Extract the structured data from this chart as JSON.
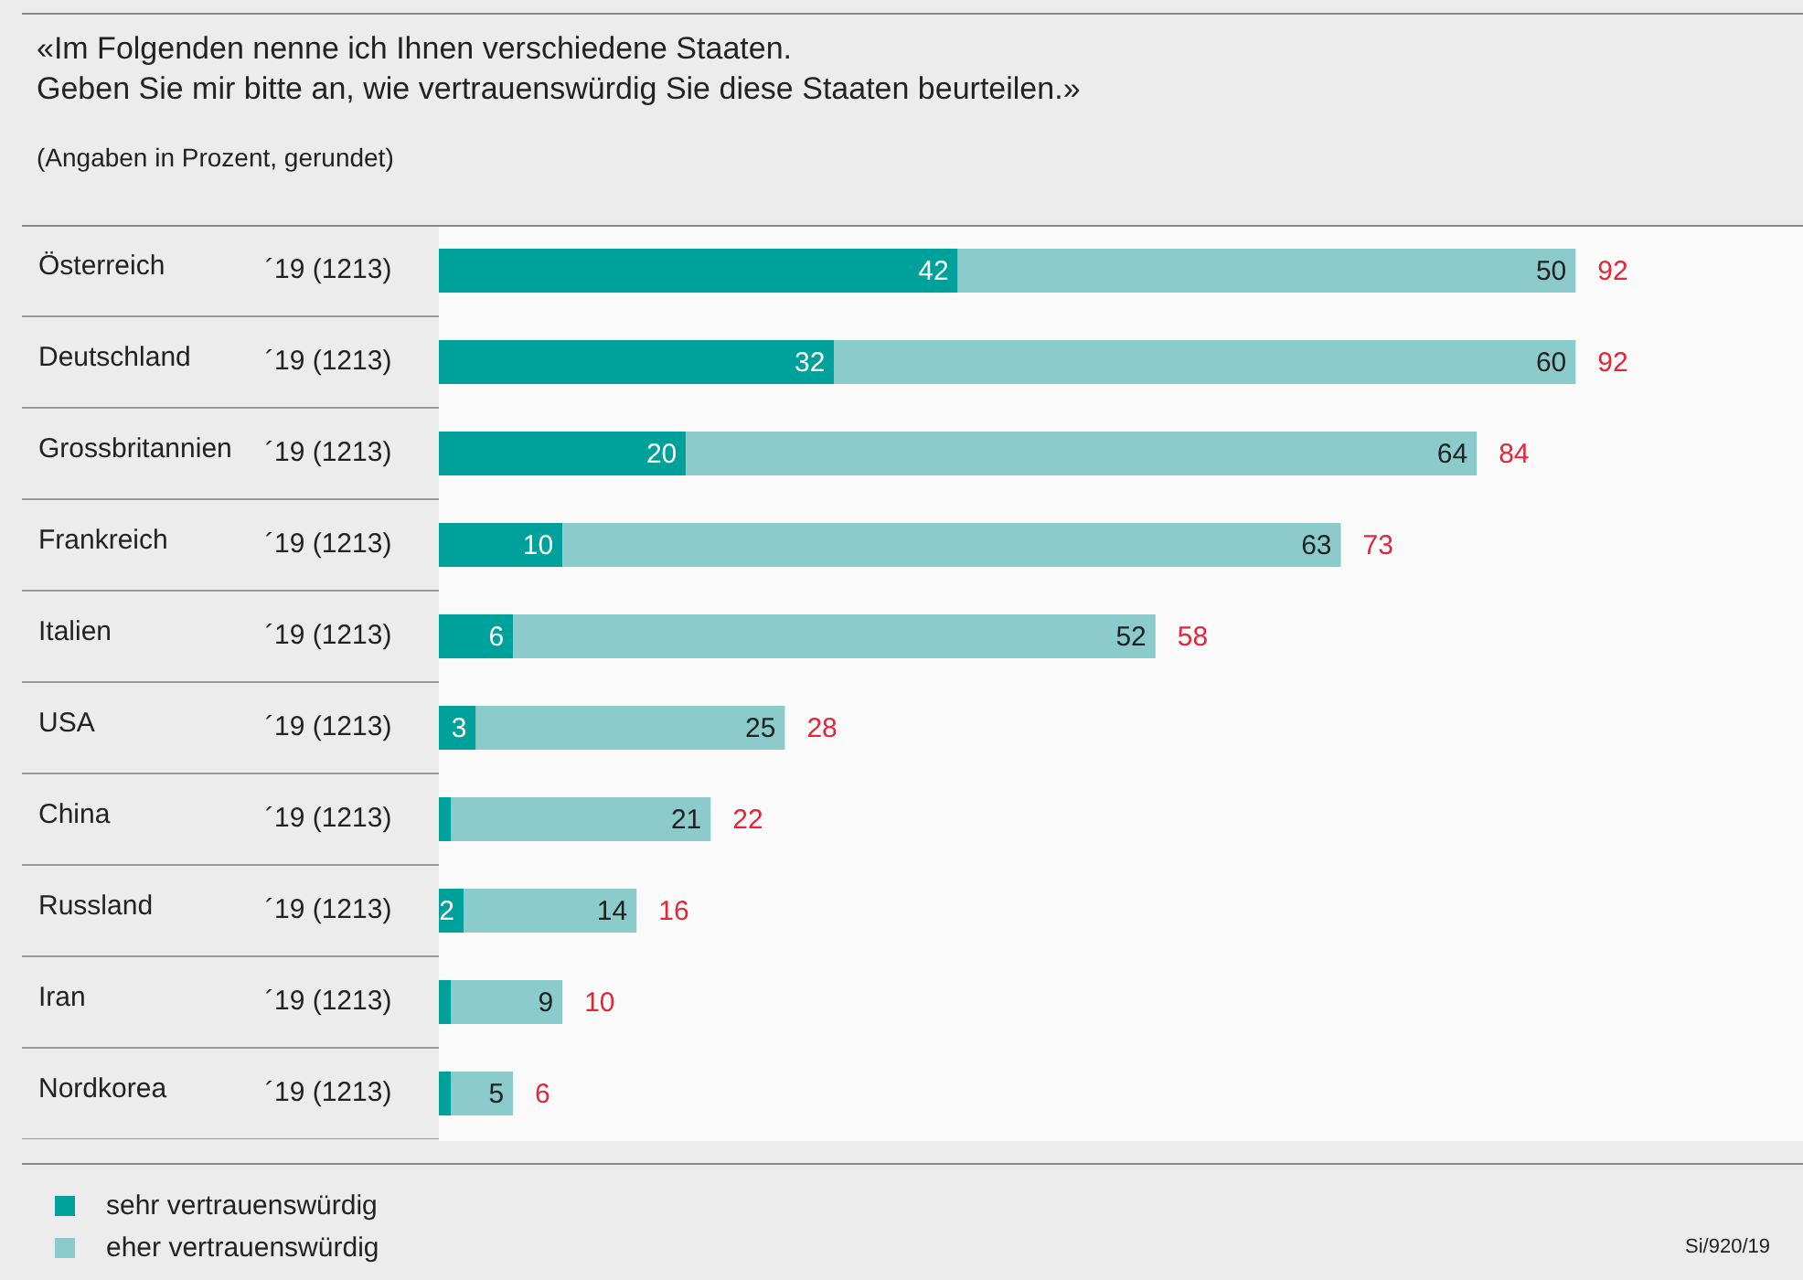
{
  "chart_data": {
    "type": "bar",
    "orientation": "horizontal",
    "stacked": true,
    "title": "«Im Folgenden nenne ich Ihnen verschiedene Staaten.\nGeben Sie mir bitte an, wie vertrauenswürdig Sie diese Staaten beurteilen.»",
    "subtitle": "(Angaben in Prozent, gerundet)",
    "categories": [
      "Österreich",
      "Deutschland",
      "Grossbritannien",
      "Frankreich",
      "Italien",
      "USA",
      "China",
      "Russland",
      "Iran",
      "Nordkorea"
    ],
    "series": [
      {
        "name": "sehr vertrauenswürdig",
        "color": "#00a19b",
        "values": [
          42,
          32,
          20,
          10,
          6,
          3,
          1,
          2,
          1,
          1
        ],
        "value_labels": [
          "42",
          "32",
          "20",
          "10",
          "6",
          "3",
          null,
          "2",
          null,
          null
        ]
      },
      {
        "name": "eher vertrauenswürdig",
        "color": "#8ccbcb",
        "values": [
          50,
          60,
          64,
          63,
          52,
          25,
          21,
          14,
          9,
          5
        ],
        "value_labels": [
          "50",
          "60",
          "64",
          "63",
          "52",
          "25",
          "21",
          "14",
          "9",
          "5"
        ]
      }
    ],
    "totals": [
      "92",
      "92",
      "84",
      "73",
      "58",
      "28",
      "22",
      "16",
      "10",
      "6"
    ],
    "annotations": [
      "´19 (1213)",
      "´19 (1213)",
      "´19 (1213)",
      "´19 (1213)",
      "´19 (1213)",
      "´19 (1213)",
      "´19 (1213)",
      "´19 (1213)",
      "´19 (1213)",
      "´19 (1213)",
      "Si/920/19"
    ],
    "legend": "bottom left"
  }
}
